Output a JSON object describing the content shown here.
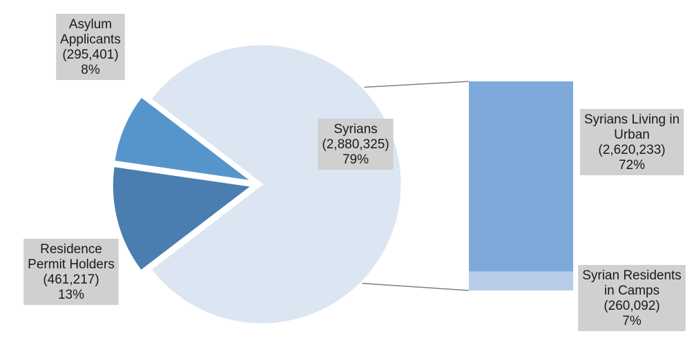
{
  "chart_data": {
    "type": "bar-of-pie",
    "title": "",
    "pie": {
      "slices": [
        {
          "label_lines": [
            "Syrians",
            "(2,880,325)",
            "79%"
          ],
          "value": 2880325,
          "percent": 79,
          "color": "#dce6f2"
        },
        {
          "label_lines": [
            "Residence",
            "Permit Holders",
            "(461,217)",
            "13%"
          ],
          "value": 461217,
          "percent": 13,
          "color": "#4a7eb0"
        },
        {
          "label_lines": [
            "Asylum",
            "Applicants",
            "(295,401)",
            "8%"
          ],
          "value": 295401,
          "percent": 8,
          "color": "#5595cc"
        }
      ]
    },
    "bar": {
      "segments": [
        {
          "label_lines": [
            "Syrians Living in",
            "Urban",
            "(2,620,233)",
            "72%"
          ],
          "value": 2620233,
          "percent": 72,
          "color": "#7ea9da"
        },
        {
          "label_lines": [
            "Syrian Residents",
            "in Camps",
            "(260,092)",
            "7%"
          ],
          "value": 260092,
          "percent": 7,
          "color": "#b8cde9"
        }
      ]
    },
    "colors": {
      "label_box": "#d0d0d0",
      "connector": "#7f7f7f",
      "slice_border": "#ffffff"
    }
  }
}
